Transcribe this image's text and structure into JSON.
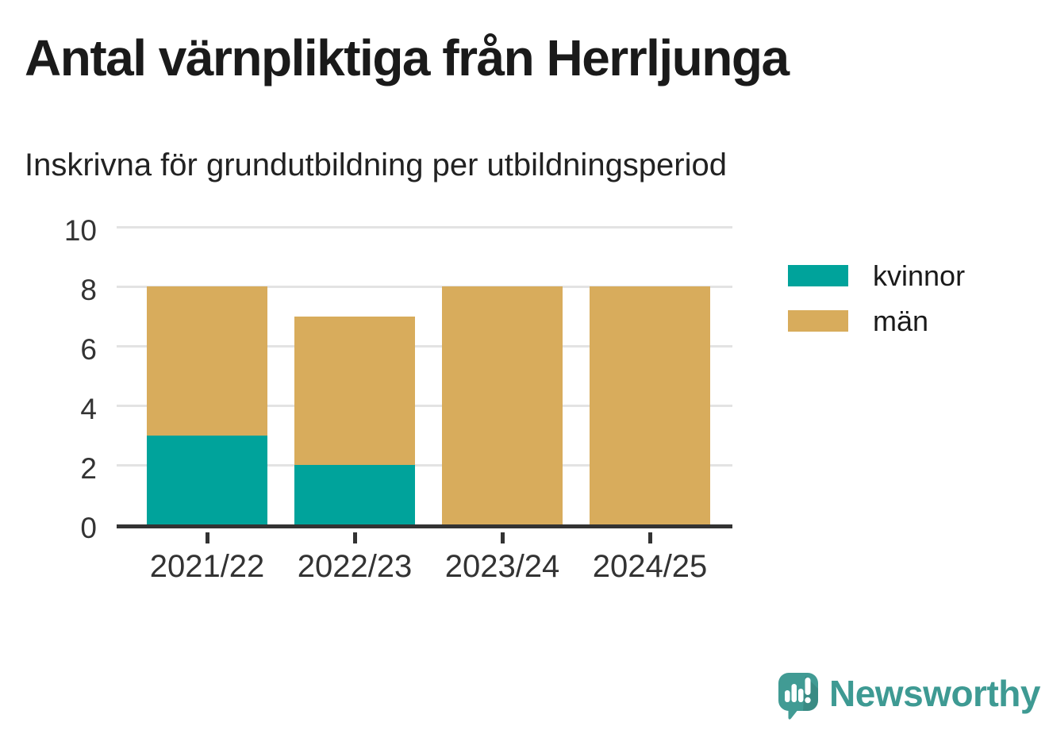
{
  "chart_data": {
    "type": "bar",
    "stacked": true,
    "title": "Antal värnpliktiga från Herrljunga",
    "subtitle": "Inskrivna för grundutbildning per utbildningsperiod",
    "categories": [
      "2021/22",
      "2022/23",
      "2023/24",
      "2024/25"
    ],
    "series": [
      {
        "name": "kvinnor",
        "values": [
          3,
          2,
          0,
          0
        ],
        "color": "#00A39B"
      },
      {
        "name": "män",
        "values": [
          5,
          5,
          8,
          8
        ],
        "color": "#D8AC5C"
      }
    ],
    "xlabel": "",
    "ylabel": "",
    "ylim": [
      0,
      10
    ],
    "yticks": [
      0,
      2,
      4,
      6,
      8,
      10
    ],
    "grid": true,
    "legend_position": "right"
  },
  "branding": {
    "wordmark": "Newsworthy",
    "logo_icon": "speech-bubble-with-bar-chart-and-exclamation",
    "brand_color": "#3E9A93"
  },
  "colors": {
    "series_kvinnor": "#00A39B",
    "series_man": "#D8AC5C",
    "title_text": "#1A1A1A",
    "axis_text": "#333333",
    "axis_line": "#333333",
    "gridline": "#E3E3E3",
    "background": "#FFFFFF"
  }
}
